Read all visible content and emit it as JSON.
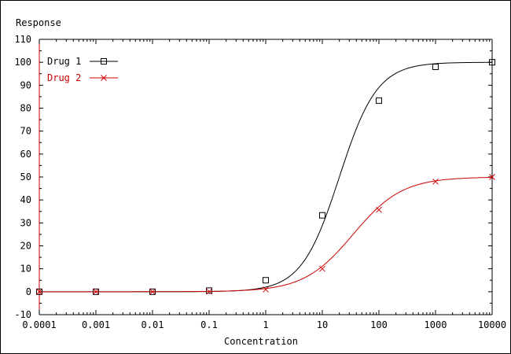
{
  "chart_data": {
    "type": "line",
    "title": "",
    "ylabel": "Response",
    "xlabel": "Concentration",
    "xscale": "log",
    "xlim": [
      0.0001,
      10000
    ],
    "ylim": [
      -10,
      110
    ],
    "y_ticks": [
      -10,
      0,
      10,
      20,
      30,
      40,
      50,
      60,
      70,
      80,
      90,
      100,
      110
    ],
    "x_ticks": [
      0.0001,
      0.001,
      0.01,
      0.1,
      1,
      10,
      100,
      1000,
      10000
    ],
    "x_tick_labels": [
      "0.0001",
      "0.001",
      "0.01",
      "0.1",
      "1",
      "10",
      "100",
      "1000",
      "10000"
    ],
    "legend_position": "top-left",
    "grid": false,
    "series": [
      {
        "name": "Drug 1",
        "color": "#000000",
        "marker": "square",
        "x": [
          0.0001,
          0.001,
          0.01,
          0.1,
          1,
          10,
          100,
          1000,
          10000
        ],
        "y": [
          0,
          0,
          0,
          0.5,
          5,
          33.3,
          83.3,
          98,
          100
        ],
        "curve": "hill",
        "hill": {
          "bottom": 0,
          "top": 100,
          "ec50": 20,
          "n": 1.3
        }
      },
      {
        "name": "Drug 2",
        "color": "#cc0000",
        "marker": "x",
        "x": [
          0.0001,
          0.001,
          0.01,
          0.1,
          1,
          10,
          100,
          1000,
          10000
        ],
        "y": [
          0,
          0,
          0,
          0.1,
          1,
          10,
          35.7,
          48,
          50
        ],
        "curve": "hill",
        "hill": {
          "bottom": 0,
          "top": 50,
          "ec50": 35,
          "n": 1.0
        }
      }
    ]
  }
}
